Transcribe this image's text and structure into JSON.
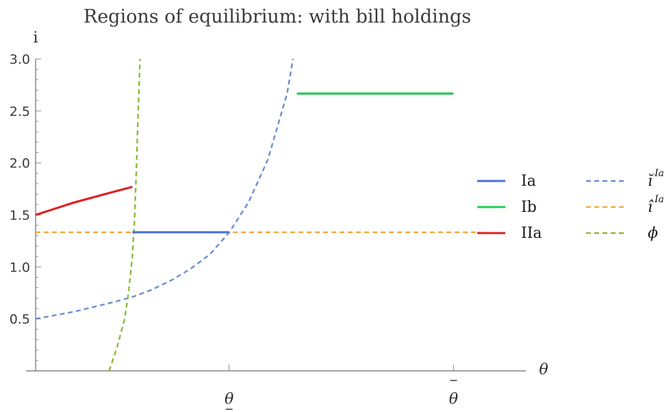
{
  "chart_data": {
    "type": "line",
    "title": "Regions of equilibrium: with bill holdings",
    "xlabel": "θ",
    "ylabel": "i",
    "ylim": [
      0,
      3.0
    ],
    "xlim": [
      0,
      2.3
    ],
    "grid": false,
    "legend_position": "right",
    "y_ticks": [
      "0.5",
      "1.0",
      "1.5",
      "2.0",
      "2.5",
      "3.0"
    ],
    "x_ticks": [
      {
        "value": 1.0,
        "label": "θ",
        "mark": "underbar"
      },
      {
        "value": 2.16,
        "label": "θ",
        "mark": "overbar"
      }
    ],
    "series": [
      {
        "name": "Ia",
        "style": "solid",
        "color": "#4a6fd8",
        "x": [
          0.5,
          1.0
        ],
        "y": [
          1.333,
          1.333
        ]
      },
      {
        "name": "Ib",
        "style": "solid",
        "color": "#22cc55",
        "x": [
          1.35,
          2.16
        ],
        "y": [
          2.667,
          2.667
        ]
      },
      {
        "name": "IIa",
        "style": "solid",
        "color": "#dd2222",
        "x": [
          0.0,
          0.1,
          0.2,
          0.3,
          0.4,
          0.5
        ],
        "y": [
          1.5,
          1.56,
          1.62,
          1.67,
          1.72,
          1.77
        ]
      },
      {
        "name": "ĭ",
        "sup": "Ia",
        "style": "dashed",
        "color": "#6a8ed0",
        "x": [
          0.0,
          0.2,
          0.4,
          0.5,
          0.6,
          0.7,
          0.8,
          0.9,
          1.0,
          1.1,
          1.2,
          1.3,
          1.33
        ],
        "y": [
          0.5,
          0.57,
          0.66,
          0.71,
          0.78,
          0.87,
          0.98,
          1.12,
          1.33,
          1.62,
          2.03,
          2.67,
          3.0
        ]
      },
      {
        "name": "î",
        "sup": "Ia",
        "style": "dashed",
        "color": "#f0a93a",
        "x": [
          0.0,
          2.3
        ],
        "y": [
          1.333,
          1.333
        ]
      },
      {
        "name": "ϕ",
        "style": "dashed",
        "color": "#8cb83c",
        "x": [
          0.38,
          0.42,
          0.46,
          0.48,
          0.5,
          0.51,
          0.52,
          0.53,
          0.54
        ],
        "y": [
          0.0,
          0.22,
          0.5,
          0.75,
          1.1,
          1.4,
          1.9,
          2.5,
          3.0
        ]
      }
    ]
  }
}
